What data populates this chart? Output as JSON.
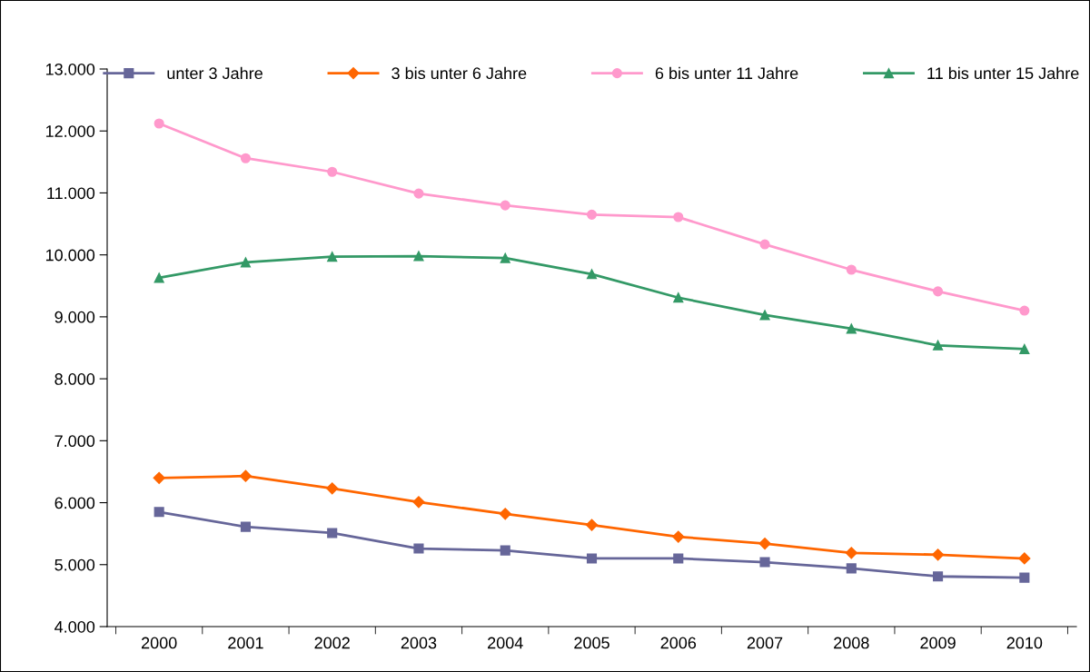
{
  "chart_data": {
    "type": "line",
    "categories": [
      "2000",
      "2001",
      "2002",
      "2003",
      "2004",
      "2005",
      "2006",
      "2007",
      "2008",
      "2009",
      "2010"
    ],
    "series": [
      {
        "name": "unter 3 Jahre",
        "color": "#666699",
        "marker": "square",
        "values": [
          5850,
          5610,
          5510,
          5260,
          5230,
          5100,
          5100,
          5040,
          4940,
          4810,
          4790
        ]
      },
      {
        "name": "3 bis unter 6 Jahre",
        "color": "#ff6600",
        "marker": "diamond",
        "values": [
          6400,
          6430,
          6230,
          6010,
          5820,
          5640,
          5450,
          5340,
          5190,
          5160,
          5100
        ]
      },
      {
        "name": "6 bis unter 11 Jahre",
        "color": "#ff99cc",
        "marker": "circle",
        "values": [
          12120,
          11560,
          11340,
          10990,
          10800,
          10650,
          10610,
          10170,
          9760,
          9410,
          9100
        ]
      },
      {
        "name": "11 bis unter 15 Jahre",
        "color": "#339966",
        "marker": "triangle",
        "values": [
          9630,
          9880,
          9970,
          9980,
          9950,
          9690,
          9310,
          9030,
          8810,
          8540,
          8480
        ]
      }
    ],
    "ylim": [
      4000,
      13000
    ],
    "yticks": [
      {
        "value": 4000,
        "label": "4.000"
      },
      {
        "value": 5000,
        "label": "5.000"
      },
      {
        "value": 6000,
        "label": "6.000"
      },
      {
        "value": 7000,
        "label": "7.000"
      },
      {
        "value": 8000,
        "label": "8.000"
      },
      {
        "value": 9000,
        "label": "9.000"
      },
      {
        "value": 10000,
        "label": "10.000"
      },
      {
        "value": 11000,
        "label": "11.000"
      },
      {
        "value": 12000,
        "label": "12.000"
      },
      {
        "value": 13000,
        "label": "13.000"
      }
    ],
    "grid": false,
    "legend": "top",
    "line_style": "solid"
  }
}
